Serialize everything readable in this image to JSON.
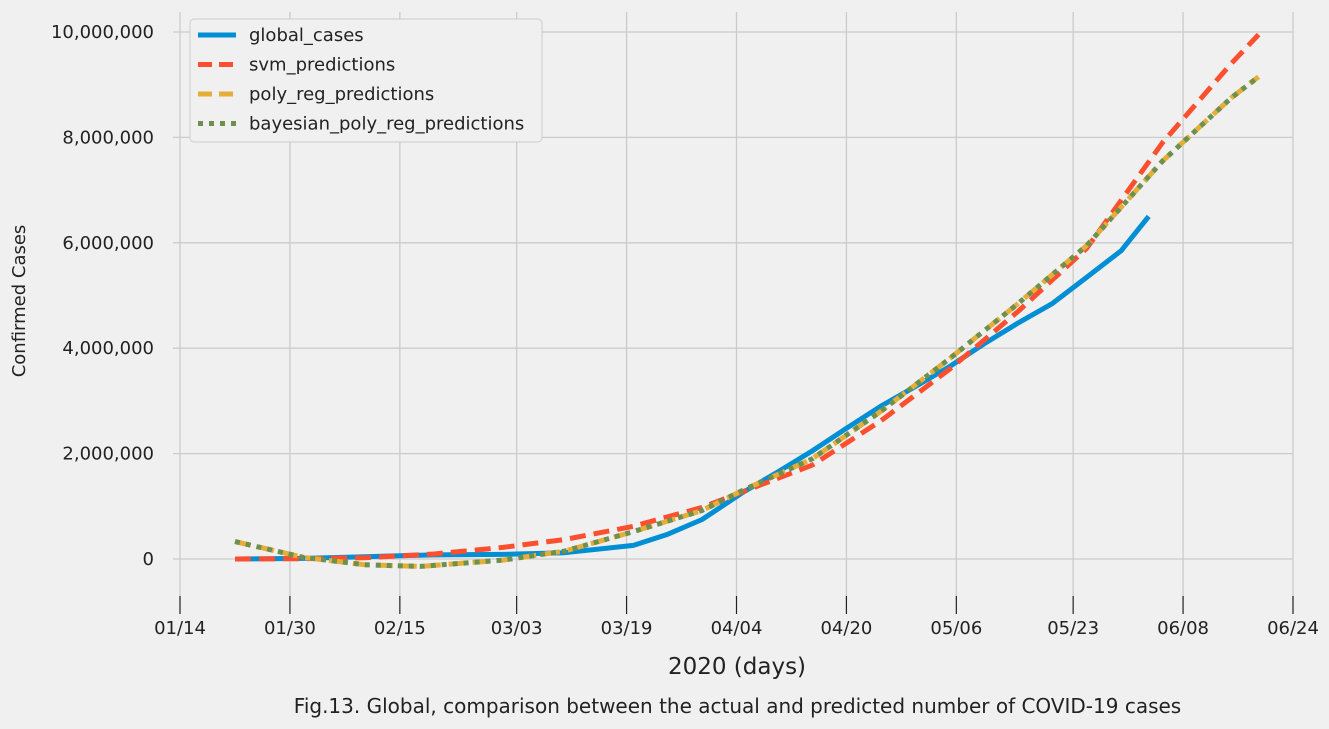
{
  "chart_data": {
    "type": "line",
    "xlabel": "2020 (days)",
    "ylabel": "Confirmed Cases",
    "caption": "Fig.13. Global, comparison between the actual and predicted number of COVID-19 cases",
    "x_ticks": [
      "01/14",
      "01/30",
      "02/15",
      "03/03",
      "03/19",
      "04/04",
      "04/20",
      "05/06",
      "05/23",
      "06/08",
      "06/24"
    ],
    "x_tick_dates": [
      "2020-01-14",
      "2020-01-30",
      "2020-02-15",
      "2020-03-03",
      "2020-03-19",
      "2020-04-04",
      "2020-04-20",
      "2020-05-06",
      "2020-05-23",
      "2020-06-08",
      "2020-06-24"
    ],
    "y_ticks": [
      "0",
      "2,000,000",
      "4,000,000",
      "6,000,000",
      "8,000,000",
      "10,000,000"
    ],
    "y_tick_values": [
      0,
      2000000,
      4000000,
      6000000,
      8000000,
      10000000
    ],
    "xlim": [
      "2020-01-14",
      "2020-06-24"
    ],
    "ylim": [
      -750000,
      10400000
    ],
    "grid": true,
    "legend_position": "top-left",
    "colors": {
      "global_cases": "#008fd5",
      "svm_predictions": "#fc4f30",
      "poly_reg_predictions": "#e5ae38",
      "bayesian_poly_reg_predictions": "#6d904f"
    },
    "series": [
      {
        "name": "global_cases",
        "style": "solid",
        "x": [
          "2020-01-22",
          "2020-02-01",
          "2020-02-10",
          "2020-02-20",
          "2020-03-01",
          "2020-03-10",
          "2020-03-20",
          "2020-03-25",
          "2020-03-30",
          "2020-04-05",
          "2020-04-10",
          "2020-04-15",
          "2020-04-20",
          "2020-04-25",
          "2020-04-30",
          "2020-05-05",
          "2020-05-10",
          "2020-05-15",
          "2020-05-20",
          "2020-05-25",
          "2020-05-30",
          "2020-06-03"
        ],
        "y": [
          557,
          12000,
          43000,
          77000,
          88000,
          119000,
          258000,
          470000,
          750000,
          1270000,
          1650000,
          2050000,
          2480000,
          2900000,
          3270000,
          3650000,
          4080000,
          4480000,
          4850000,
          5350000,
          5850000,
          6500000
        ]
      },
      {
        "name": "svm_predictions",
        "style": "dashed",
        "x": [
          "2020-01-22",
          "2020-02-01",
          "2020-02-10",
          "2020-02-20",
          "2020-03-01",
          "2020-03-10",
          "2020-03-20",
          "2020-03-30",
          "2020-04-05",
          "2020-04-15",
          "2020-04-25",
          "2020-05-05",
          "2020-05-15",
          "2020-05-25",
          "2020-06-05",
          "2020-06-15",
          "2020-06-19"
        ],
        "y": [
          0,
          5000,
          25000,
          95000,
          220000,
          370000,
          620000,
          980000,
          1280000,
          1780000,
          2620000,
          3600000,
          4700000,
          5900000,
          7900000,
          9400000,
          9950000
        ]
      },
      {
        "name": "poly_reg_predictions",
        "style": "dashed",
        "x": [
          "2020-01-22",
          "2020-02-01",
          "2020-02-10",
          "2020-02-18",
          "2020-03-01",
          "2020-03-10",
          "2020-03-20",
          "2020-03-30",
          "2020-04-05",
          "2020-04-15",
          "2020-04-25",
          "2020-05-05",
          "2020-05-15",
          "2020-05-25",
          "2020-06-05",
          "2020-06-15",
          "2020-06-19"
        ],
        "y": [
          330000,
          30000,
          -110000,
          -140000,
          -20000,
          150000,
          520000,
          920000,
          1310000,
          1900000,
          2800000,
          3800000,
          4850000,
          5950000,
          7550000,
          8750000,
          9150000
        ]
      },
      {
        "name": "bayesian_poly_reg_predictions",
        "style": "dotted",
        "x": [
          "2020-01-22",
          "2020-02-01",
          "2020-02-10",
          "2020-02-18",
          "2020-03-01",
          "2020-03-10",
          "2020-03-20",
          "2020-03-30",
          "2020-04-05",
          "2020-04-15",
          "2020-04-25",
          "2020-05-05",
          "2020-05-15",
          "2020-05-25",
          "2020-06-05",
          "2020-06-15",
          "2020-06-19"
        ],
        "y": [
          330000,
          30000,
          -110000,
          -140000,
          -20000,
          150000,
          520000,
          920000,
          1310000,
          1900000,
          2800000,
          3800000,
          4850000,
          5950000,
          7550000,
          8750000,
          9150000
        ]
      }
    ]
  }
}
